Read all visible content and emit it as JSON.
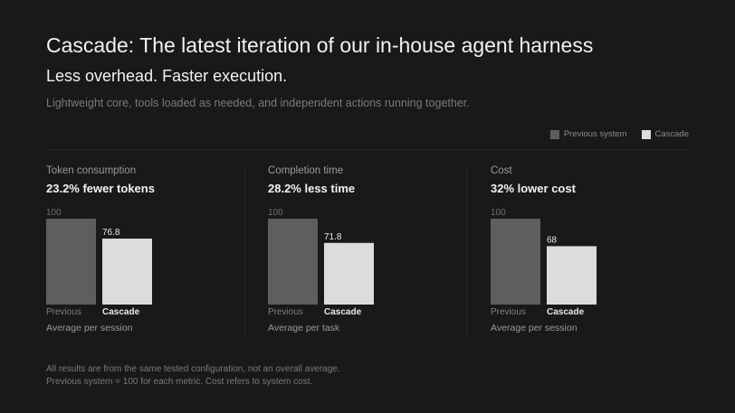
{
  "header": {
    "title": "Cascade: The latest iteration of our in-house agent harness",
    "subtitle": "Less overhead. Faster execution.",
    "description": "Lightweight core, tools loaded as needed, and independent actions running together."
  },
  "legend": [
    {
      "label": "Previous system",
      "color": "#5e5e5e"
    },
    {
      "label": "Cascade",
      "color": "#dcdcdc"
    }
  ],
  "colors": {
    "previous": "#5e5e5e",
    "cascade": "#dcdcdc"
  },
  "chart_data": [
    {
      "type": "bar",
      "title": "Token consumption",
      "subtitle": "23.2% fewer tokens",
      "categories": [
        "Previous",
        "Cascade"
      ],
      "values": [
        100,
        76.8
      ],
      "ylim": [
        0,
        100
      ],
      "footer": "Average per session"
    },
    {
      "type": "bar",
      "title": "Completion time",
      "subtitle": "28.2% less time",
      "categories": [
        "Previous",
        "Cascade"
      ],
      "values": [
        100,
        71.8
      ],
      "ylim": [
        0,
        100
      ],
      "footer": "Average per task"
    },
    {
      "type": "bar",
      "title": "Cost",
      "subtitle": "32% lower cost",
      "categories": [
        "Previous",
        "Cascade"
      ],
      "values": [
        100,
        68
      ],
      "ylim": [
        0,
        100
      ],
      "footer": "Average per session"
    }
  ],
  "footnotes": [
    "All results are from the same tested configuration, not an overall average.",
    "Previous system = 100 for each metric. Cost refers to system cost."
  ]
}
